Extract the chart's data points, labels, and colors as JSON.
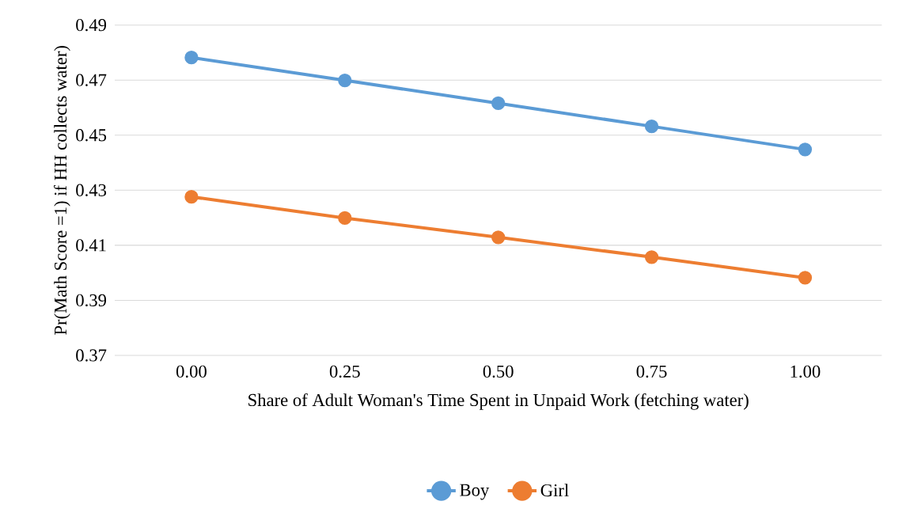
{
  "chart_data": {
    "type": "line",
    "xlabel": "Share of Adult Woman's Time Spent in Unpaid Work (fetching water)",
    "ylabel": "Pr(Math Score =1) if HH collects water)",
    "categories": [
      "0.00",
      "0.25",
      "0.50",
      "0.75",
      "1.00"
    ],
    "series": [
      {
        "name": "Boy",
        "color": "#5b9bd5",
        "values": [
          0.4782,
          0.4699,
          0.4616,
          0.4532,
          0.4448
        ]
      },
      {
        "name": "Girl",
        "color": "#ed7d31",
        "values": [
          0.4276,
          0.4199,
          0.4129,
          0.4057,
          0.3982
        ]
      }
    ],
    "ylim": [
      0.37,
      0.49
    ],
    "yticks": [
      0.37,
      0.39,
      0.41,
      0.43,
      0.45,
      0.47,
      0.49
    ],
    "grid": "y",
    "legend": "bottom",
    "marker": "circle",
    "line_style": "solid"
  }
}
